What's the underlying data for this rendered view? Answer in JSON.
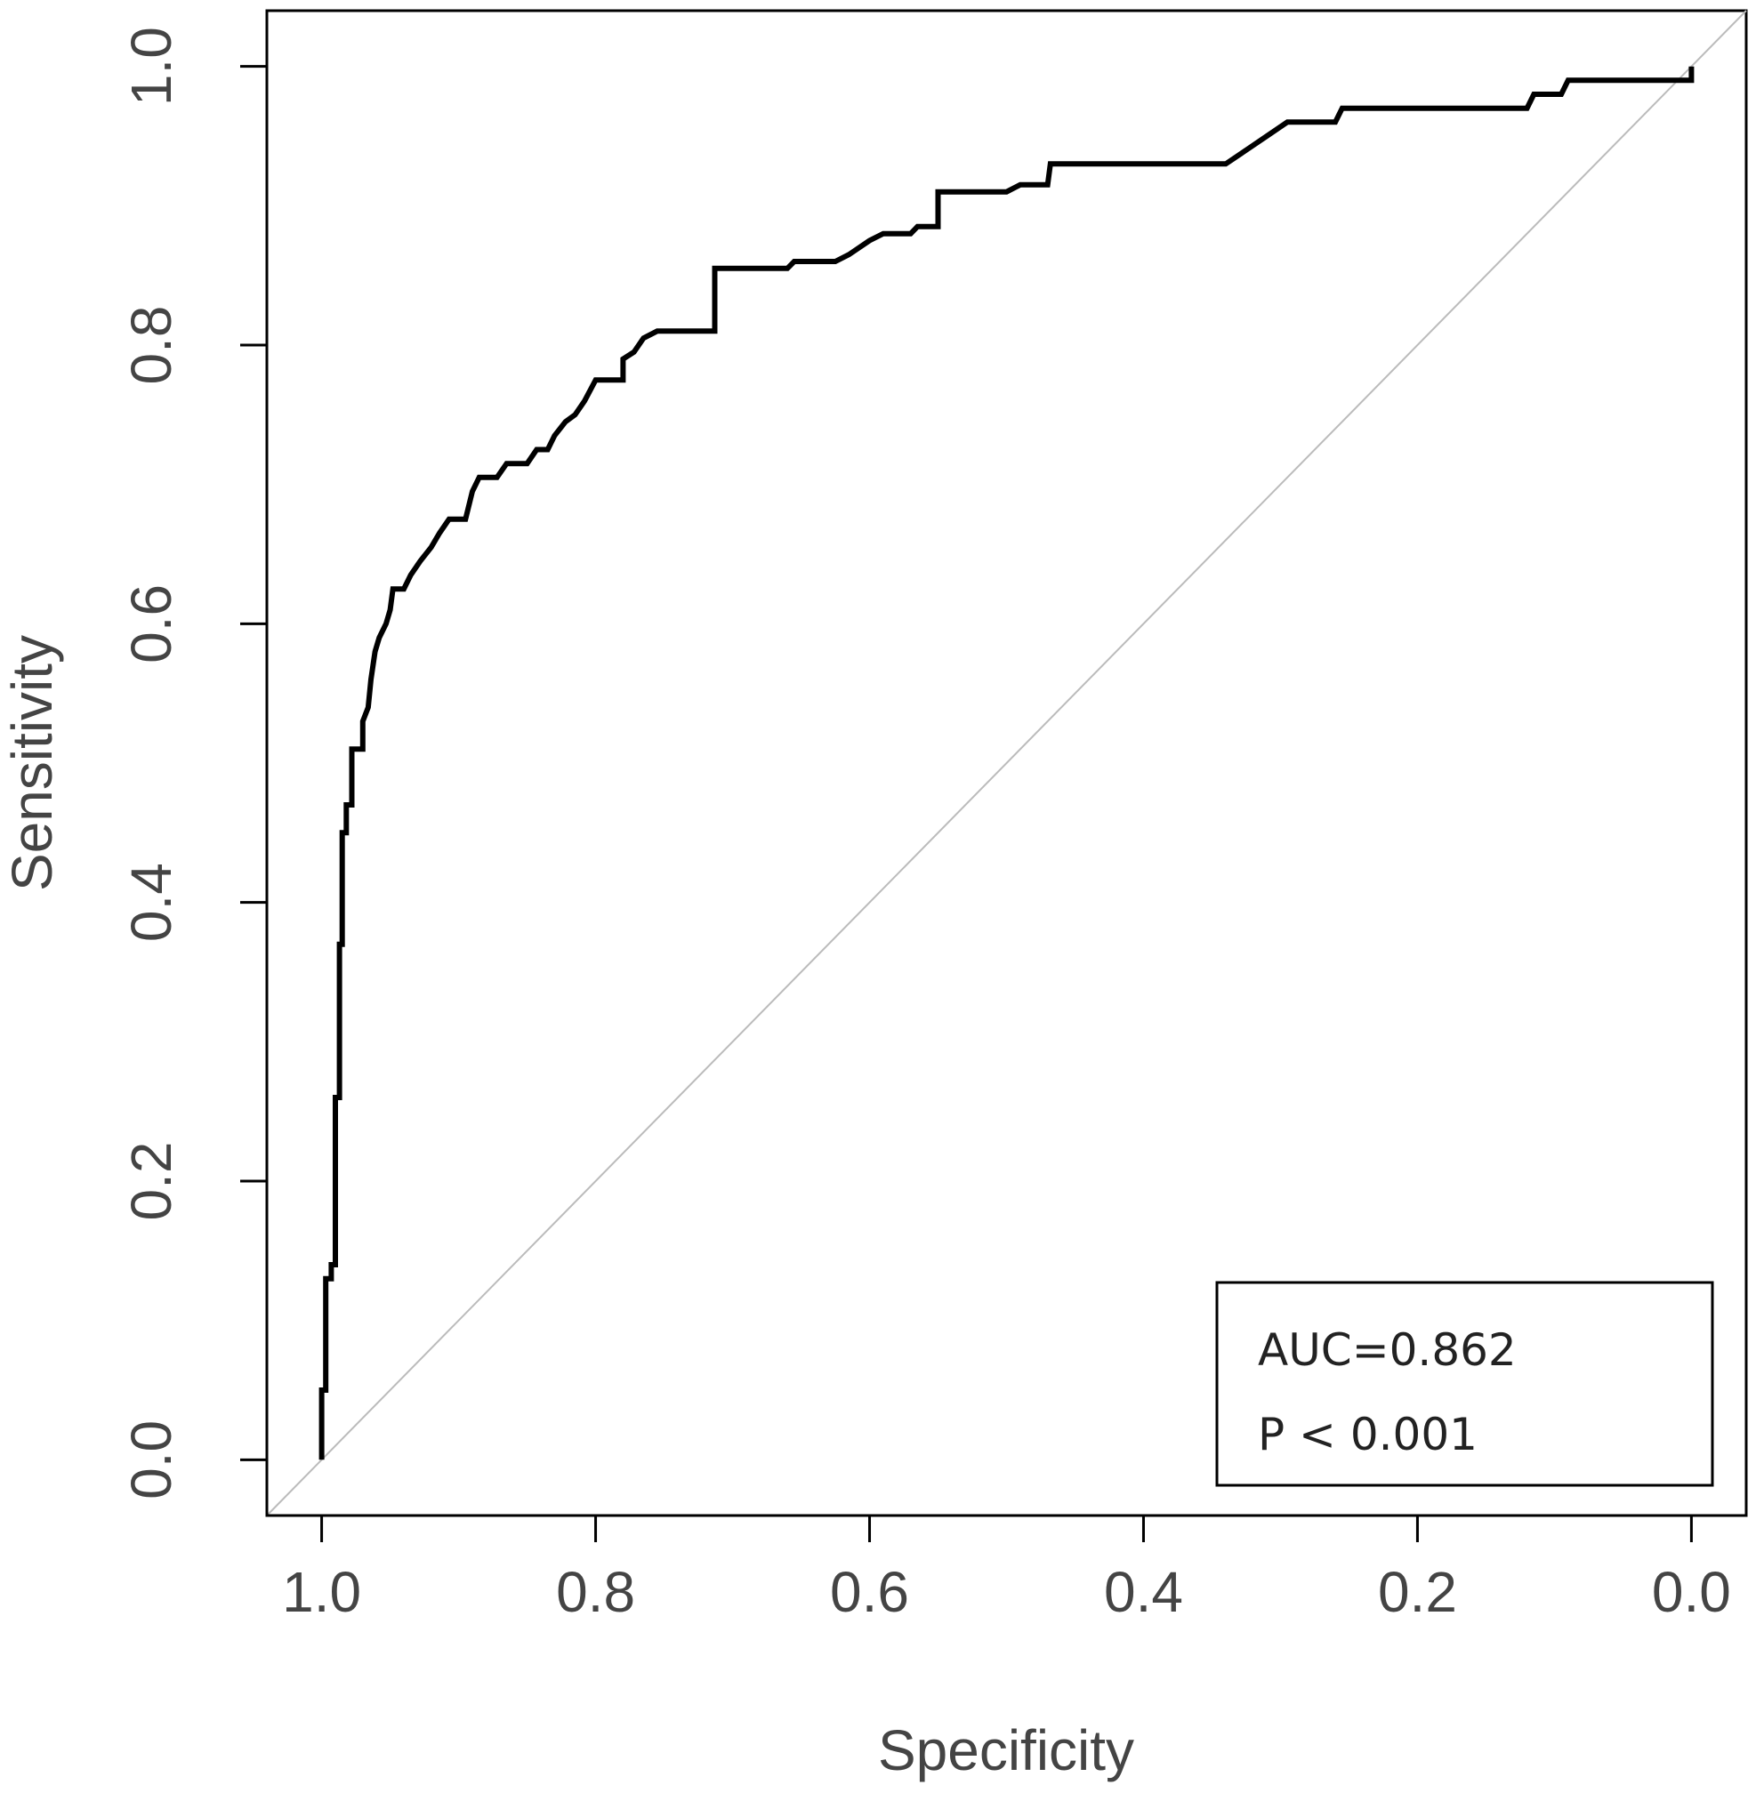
{
  "chart_data": {
    "type": "line",
    "xlabel": "Specificity",
    "ylabel": "Sensitivity",
    "xlim": [
      1.04,
      -0.04
    ],
    "ylim": [
      -0.04,
      1.04
    ],
    "x_reversed": true,
    "x_ticks": [
      "1.0",
      "0.8",
      "0.6",
      "0.4",
      "0.2",
      "0.0"
    ],
    "y_ticks": [
      "0.0",
      "0.2",
      "0.4",
      "0.6",
      "0.8",
      "1.0"
    ],
    "grid": false,
    "reference_line": {
      "from": [
        1.0,
        0.0
      ],
      "to": [
        0.0,
        1.0
      ],
      "color": "#bbbbbb"
    },
    "series": [
      {
        "color": "#000000",
        "points": [
          [
            1.0,
            0.0
          ],
          [
            1.0,
            0.05
          ],
          [
            0.997,
            0.05
          ],
          [
            0.997,
            0.13
          ],
          [
            0.993,
            0.13
          ],
          [
            0.993,
            0.14
          ],
          [
            0.99,
            0.14
          ],
          [
            0.99,
            0.26
          ],
          [
            0.987,
            0.26
          ],
          [
            0.987,
            0.37
          ],
          [
            0.985,
            0.37
          ],
          [
            0.985,
            0.45
          ],
          [
            0.982,
            0.45
          ],
          [
            0.982,
            0.47
          ],
          [
            0.978,
            0.47
          ],
          [
            0.978,
            0.51
          ],
          [
            0.97,
            0.51
          ],
          [
            0.97,
            0.53
          ],
          [
            0.966,
            0.54
          ],
          [
            0.964,
            0.56
          ],
          [
            0.961,
            0.58
          ],
          [
            0.958,
            0.59
          ],
          [
            0.953,
            0.6
          ],
          [
            0.95,
            0.61
          ],
          [
            0.948,
            0.625
          ],
          [
            0.94,
            0.625
          ],
          [
            0.935,
            0.635
          ],
          [
            0.928,
            0.645
          ],
          [
            0.92,
            0.655
          ],
          [
            0.914,
            0.665
          ],
          [
            0.907,
            0.675
          ],
          [
            0.895,
            0.675
          ],
          [
            0.89,
            0.695
          ],
          [
            0.885,
            0.705
          ],
          [
            0.872,
            0.705
          ],
          [
            0.865,
            0.715
          ],
          [
            0.85,
            0.715
          ],
          [
            0.843,
            0.725
          ],
          [
            0.835,
            0.725
          ],
          [
            0.83,
            0.735
          ],
          [
            0.822,
            0.745
          ],
          [
            0.815,
            0.75
          ],
          [
            0.808,
            0.76
          ],
          [
            0.8,
            0.775
          ],
          [
            0.78,
            0.775
          ],
          [
            0.78,
            0.79
          ],
          [
            0.772,
            0.795
          ],
          [
            0.765,
            0.805
          ],
          [
            0.755,
            0.81
          ],
          [
            0.713,
            0.81
          ],
          [
            0.713,
            0.855
          ],
          [
            0.66,
            0.855
          ],
          [
            0.655,
            0.86
          ],
          [
            0.625,
            0.86
          ],
          [
            0.615,
            0.865
          ],
          [
            0.6,
            0.875
          ],
          [
            0.59,
            0.88
          ],
          [
            0.57,
            0.88
          ],
          [
            0.565,
            0.885
          ],
          [
            0.55,
            0.885
          ],
          [
            0.55,
            0.91
          ],
          [
            0.5,
            0.91
          ],
          [
            0.49,
            0.915
          ],
          [
            0.47,
            0.915
          ],
          [
            0.468,
            0.93
          ],
          [
            0.34,
            0.93
          ],
          [
            0.325,
            0.94
          ],
          [
            0.31,
            0.95
          ],
          [
            0.295,
            0.96
          ],
          [
            0.26,
            0.96
          ],
          [
            0.255,
            0.97
          ],
          [
            0.12,
            0.97
          ],
          [
            0.115,
            0.98
          ],
          [
            0.095,
            0.98
          ],
          [
            0.09,
            0.99
          ],
          [
            0.0,
            0.99
          ],
          [
            0.0,
            1.0
          ]
        ]
      }
    ],
    "legend": {
      "position": "bottom-right",
      "lines": [
        "AUC=0.862",
        "P < 0.001"
      ]
    }
  }
}
